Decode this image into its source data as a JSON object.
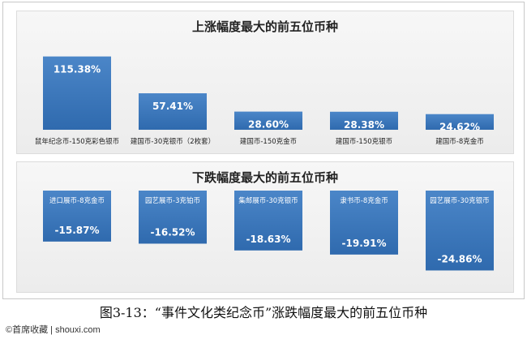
{
  "caption": "图3-13：“事件文化类纪念币”涨跌幅度最大的前五位币种",
  "watermark": "©首席收藏 | shouxi.com",
  "colors": {
    "bar": "#4b86c8",
    "bar_dark": "#2f6aae",
    "label": "#ffffff",
    "category": "#222222"
  },
  "chart_data": [
    {
      "type": "bar",
      "title": "上涨幅度最大的前五位币种",
      "categories": [
        "鼠年纪念币-150克彩色银币",
        "建国币-30克银币（2枚套）",
        "建国币-150克金币",
        "建国币-150克银币",
        "建国币-8克金币"
      ],
      "values": [
        115.38,
        57.41,
        28.6,
        28.38,
        24.62
      ],
      "value_labels": [
        "115.38%",
        "57.41%",
        "28.60%",
        "28.38%",
        "24.62%"
      ],
      "unit": "%",
      "ylim": [
        0,
        120
      ],
      "grid": false,
      "legend": "none"
    },
    {
      "type": "bar",
      "title": "下跌幅度最大的前五位币种",
      "categories": [
        "进口展币-8克金币",
        "园艺展币-3克铂币",
        "集邮展币-30克银币",
        "隶书币-8克金币",
        "园艺展币-30克银币"
      ],
      "values": [
        -15.87,
        -16.52,
        -18.63,
        -19.91,
        -24.86
      ],
      "value_labels": [
        "-15.87%",
        "-16.52%",
        "-18.63%",
        "-19.91%",
        "-24.86%"
      ],
      "unit": "%",
      "ylim": [
        -26,
        0
      ],
      "grid": false,
      "legend": "none"
    }
  ]
}
